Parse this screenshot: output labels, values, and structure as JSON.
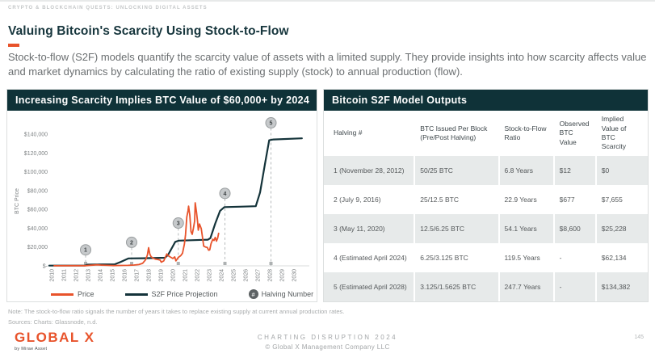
{
  "page": {
    "eyebrow": "CRYPTO & BLOCKCHAIN QUESTS: UNLOCKING DIGITAL ASSETS",
    "title": "Valuing Bitcoin's Scarcity Using Stock-to-Flow",
    "intro": "Stock-to-flow (S2F) models quantify the scarcity value of assets with a limited supply. They provide insights into how scarcity affects value and market dynamics by calculating the ratio of existing supply (stock) to annual production (flow)."
  },
  "chart_panel": {
    "header": "Increasing Scarcity Implies BTC Value of $60,000+ by 2024"
  },
  "chart_data": {
    "type": "line",
    "title": "Increasing Scarcity Implies BTC Value of $60,000+ by 2024",
    "xlabel": "",
    "ylabel": "BTC Price",
    "xlim": [
      2009.7,
      2030.8
    ],
    "ylim": [
      0,
      156000
    ],
    "grid": false,
    "legend_position": "bottom",
    "x_ticks": [
      "2010",
      "2011",
      "2012",
      "2013",
      "2014",
      "2015",
      "2016",
      "2017",
      "2018",
      "2019",
      "2020",
      "2021",
      "2022",
      "2023",
      "2024",
      "2025",
      "2026",
      "2027",
      "2028",
      "2029",
      "2030"
    ],
    "y_ticks": [
      {
        "v": 0,
        "label": "$-"
      },
      {
        "v": 20000,
        "label": "$20,000"
      },
      {
        "v": 40000,
        "label": "$40,000"
      },
      {
        "v": 60000,
        "label": "$60,000"
      },
      {
        "v": 80000,
        "label": "$80,000"
      },
      {
        "v": 100000,
        "label": "$100,000"
      },
      {
        "v": 120000,
        "label": "$120,000"
      },
      {
        "v": 140000,
        "label": "$140,000"
      }
    ],
    "series": [
      {
        "name": "S2F Price Projection",
        "color": "#14333A",
        "points": [
          [
            2009.8,
            250
          ],
          [
            2012.75,
            350
          ],
          [
            2012.95,
            1300
          ],
          [
            2015.2,
            1600
          ],
          [
            2015.7,
            4200
          ],
          [
            2016.35,
            7900
          ],
          [
            2017.5,
            8100
          ],
          [
            2019.35,
            8600
          ],
          [
            2019.6,
            11500
          ],
          [
            2019.9,
            18500
          ],
          [
            2020.2,
            25500
          ],
          [
            2020.5,
            26800
          ],
          [
            2021.5,
            27200
          ],
          [
            2022.9,
            27800
          ],
          [
            2023.1,
            29500
          ],
          [
            2023.5,
            45000
          ],
          [
            2023.9,
            58500
          ],
          [
            2024.25,
            62400
          ],
          [
            2025.5,
            62900
          ],
          [
            2026.85,
            63400
          ],
          [
            2027.2,
            78000
          ],
          [
            2027.6,
            108000
          ],
          [
            2027.95,
            133500
          ],
          [
            2028.3,
            134300
          ],
          [
            2030.65,
            135500
          ]
        ]
      },
      {
        "name": "Price",
        "color": "#E8532B",
        "points": [
          [
            2010.2,
            100
          ],
          [
            2011.5,
            150
          ],
          [
            2012.8,
            200
          ],
          [
            2013.2,
            600
          ],
          [
            2013.75,
            1150
          ],
          [
            2014.1,
            800
          ],
          [
            2014.6,
            500
          ],
          [
            2015.1,
            280
          ],
          [
            2015.8,
            400
          ],
          [
            2016.3,
            550
          ],
          [
            2016.8,
            850
          ],
          [
            2017.2,
            1400
          ],
          [
            2017.5,
            2700
          ],
          [
            2017.75,
            6500
          ],
          [
            2017.9,
            11500
          ],
          [
            2018.0,
            19300
          ],
          [
            2018.1,
            12500
          ],
          [
            2018.2,
            9800
          ],
          [
            2018.35,
            8300
          ],
          [
            2018.55,
            7200
          ],
          [
            2018.75,
            6800
          ],
          [
            2018.95,
            6100
          ],
          [
            2019.05,
            3900
          ],
          [
            2019.25,
            5300
          ],
          [
            2019.5,
            12600
          ],
          [
            2019.65,
            10500
          ],
          [
            2019.8,
            9400
          ],
          [
            2020.0,
            7800
          ],
          [
            2020.15,
            9500
          ],
          [
            2020.25,
            5300
          ],
          [
            2020.45,
            9000
          ],
          [
            2020.65,
            10800
          ],
          [
            2020.8,
            13500
          ],
          [
            2020.95,
            23000
          ],
          [
            2021.05,
            33000
          ],
          [
            2021.15,
            52000
          ],
          [
            2021.25,
            58500
          ],
          [
            2021.3,
            63400
          ],
          [
            2021.4,
            54000
          ],
          [
            2021.5,
            36500
          ],
          [
            2021.6,
            33500
          ],
          [
            2021.7,
            40000
          ],
          [
            2021.8,
            47500
          ],
          [
            2021.85,
            67000
          ],
          [
            2021.95,
            57000
          ],
          [
            2022.05,
            46500
          ],
          [
            2022.1,
            38000
          ],
          [
            2022.2,
            44500
          ],
          [
            2022.35,
            39500
          ],
          [
            2022.45,
            30000
          ],
          [
            2022.55,
            21000
          ],
          [
            2022.7,
            20000
          ],
          [
            2022.85,
            19500
          ],
          [
            2022.95,
            16700
          ],
          [
            2023.05,
            17000
          ],
          [
            2023.15,
            23500
          ],
          [
            2023.3,
            28300
          ],
          [
            2023.4,
            27000
          ],
          [
            2023.5,
            30200
          ],
          [
            2023.6,
            26300
          ],
          [
            2023.7,
            29500
          ],
          [
            2023.78,
            34500
          ]
        ]
      }
    ],
    "halvings": {
      "legend_label": "Halving Number",
      "legend_symbol": "#",
      "markers": [
        {
          "n": "1",
          "x": 2012.8,
          "circle_value": 17000
        },
        {
          "n": "2",
          "x": 2016.6,
          "circle_value": 25000
        },
        {
          "n": "3",
          "x": 2020.45,
          "circle_value": 45500
        },
        {
          "n": "4",
          "x": 2024.3,
          "circle_value": 77000
        },
        {
          "n": "5",
          "x": 2028.1,
          "circle_value": 152000
        }
      ]
    }
  },
  "table_panel": {
    "header": "Bitcoin S2F Model Outputs",
    "columns": [
      "Halving #",
      "BTC Issued Per Block (Pre/Post Halving)",
      "Stock-to-Flow Ratio",
      "Observed BTC Value",
      "Implied Value of BTC Scarcity"
    ],
    "rows": [
      [
        "1 (November 28, 2012)",
        "50/25 BTC",
        "6.8 Years",
        "$12",
        "$0"
      ],
      [
        "2 (July 9, 2016)",
        "25/12.5 BTC",
        "22.9 Years",
        "$677",
        "$7,655"
      ],
      [
        "3 (May 11, 2020)",
        "12.5/6.25 BTC",
        "54.1 Years",
        "$8,600",
        "$25,228"
      ],
      [
        "4 (Estimated April 2024)",
        "6.25/3.125 BTC",
        "119.5 Years",
        "-",
        "$62,134"
      ],
      [
        "5 (Estimated April 2028)",
        "3.125/1.5625 BTC",
        "247.7 Years",
        "-",
        "$134,382"
      ]
    ]
  },
  "footnotes": {
    "note": "Note: The stock-to-flow ratio signals the number of years it takes to replace existing supply at current annual production rates.",
    "sources": "Sources: Charts: Glassnode, n.d."
  },
  "footer": {
    "logo_text": "GLOBAL X",
    "logo_sub": "by Mirae Asset",
    "center_line1": "CHARTING DISRUPTION 2024",
    "center_line2": "© Global X Management Company LLC",
    "page_number": "145"
  },
  "colors": {
    "accent_orange": "#E8532B",
    "dark_teal": "#0F3238",
    "s2f_line": "#14333A",
    "row_stripe": "#E7EAEA",
    "halving_circle_fill": "#C6C9CB",
    "halving_circle_stroke": "#999D9F",
    "dashed_line": "#B6BABB"
  }
}
